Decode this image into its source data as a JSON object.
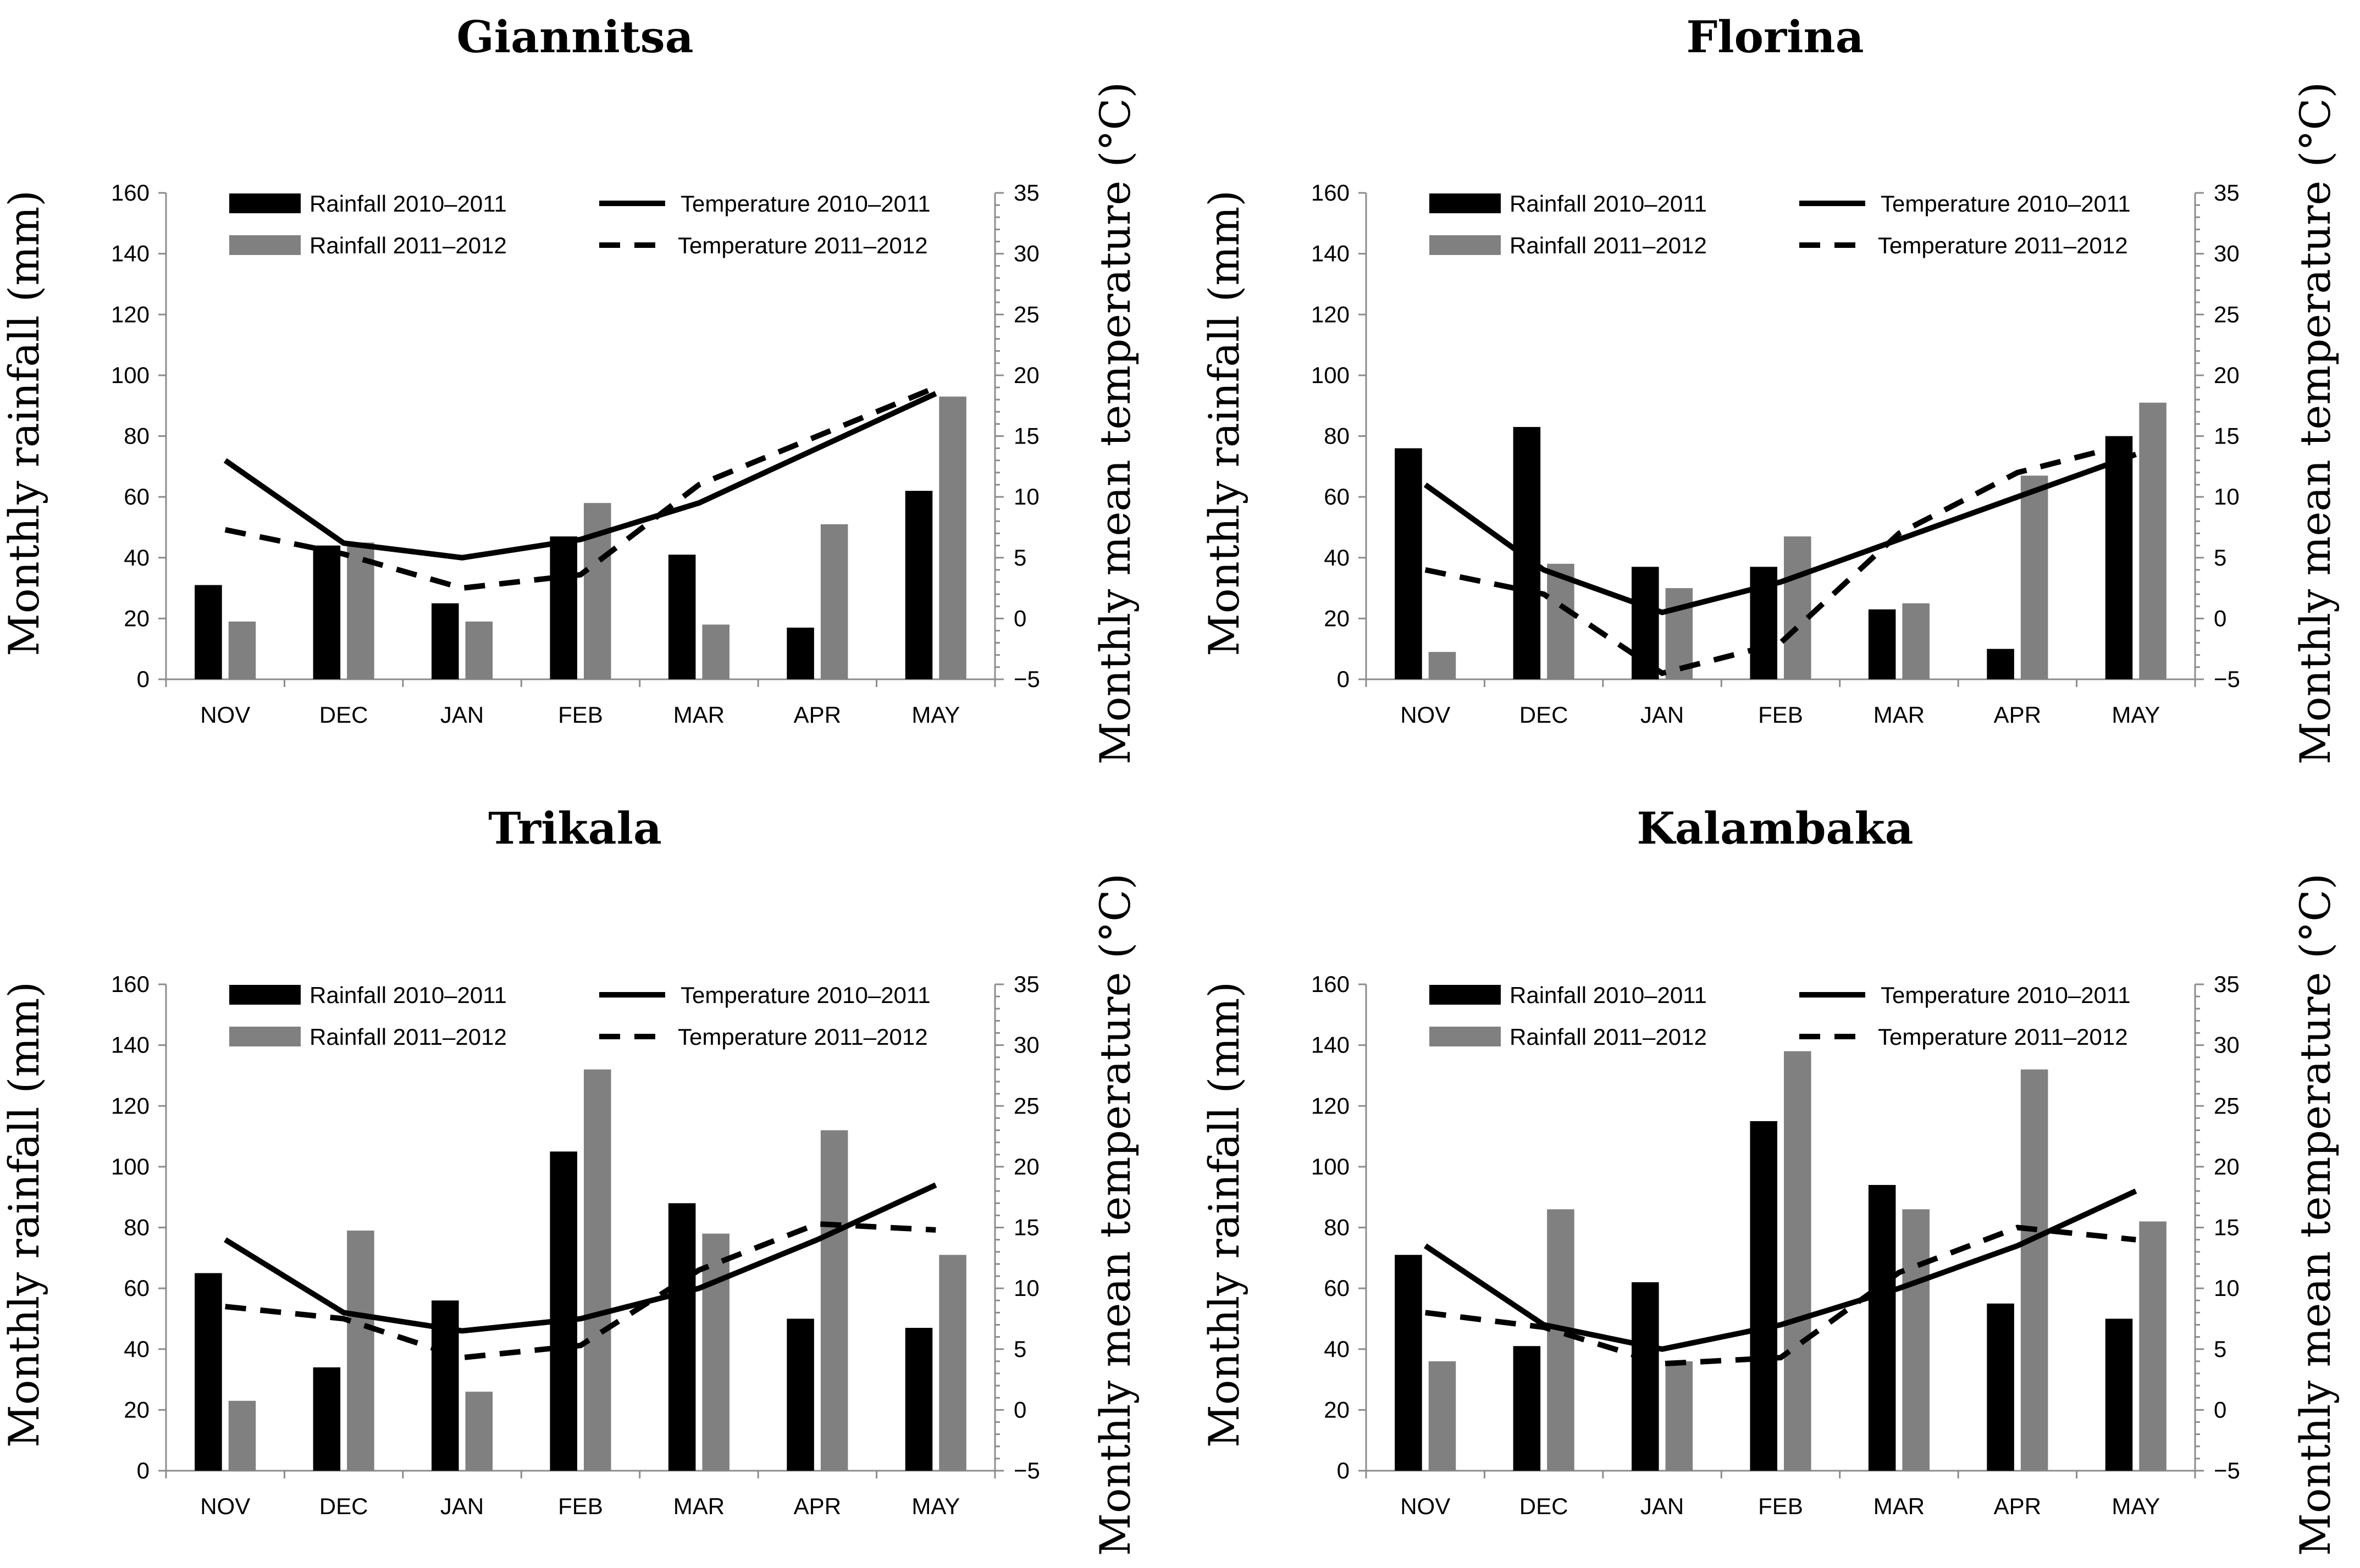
{
  "figure": {
    "color_2010": "#000000",
    "color_2011": "#808080",
    "legend": {
      "rain1": "Rainfall 2010–2011",
      "rain2": "Rainfall 2011–2012",
      "temp1": "Temperature 2010–2011",
      "temp2": "Temperature 2011–2012"
    }
  },
  "chart_data": [
    {
      "type": "bar+line",
      "title": "Giannitsa",
      "ylabel": "Monthly rainfall (mm)",
      "y2label": "Monthly mean temperature (°C)",
      "ylim": [
        0,
        160
      ],
      "y2lim": [
        -5,
        35
      ],
      "yticks": [
        0,
        20,
        40,
        60,
        80,
        100,
        120,
        140,
        160
      ],
      "y2ticks": [
        -5,
        0,
        5,
        10,
        15,
        20,
        25,
        30,
        35
      ],
      "categories": [
        "NOV",
        "DEC",
        "JAN",
        "FEB",
        "MAR",
        "APR",
        "MAY"
      ],
      "rainfall_2010_2011": [
        31,
        44,
        25,
        47,
        41,
        17,
        62
      ],
      "rainfall_2011_2012": [
        19,
        45,
        19,
        58,
        18,
        51,
        93
      ],
      "temperature_2010_2011": [
        13,
        6.2,
        5,
        6.5,
        9.5,
        14,
        18.5
      ],
      "temperature_2011_2012": [
        7.3,
        5.3,
        2.5,
        3.6,
        11,
        15,
        19
      ]
    },
    {
      "type": "bar+line",
      "title": "Florina",
      "ylabel": "Monthly rainfall (mm)",
      "y2label": "Monthly mean temperature (°C)",
      "ylim": [
        0,
        160
      ],
      "y2lim": [
        -5,
        35
      ],
      "yticks": [
        0,
        20,
        40,
        60,
        80,
        100,
        120,
        140,
        160
      ],
      "y2ticks": [
        -5,
        0,
        5,
        10,
        15,
        20,
        25,
        30,
        35
      ],
      "categories": [
        "NOV",
        "DEC",
        "JAN",
        "FEB",
        "MAR",
        "APR",
        "MAY"
      ],
      "rainfall_2010_2011": [
        76,
        83,
        37,
        37,
        23,
        10,
        80
      ],
      "rainfall_2011_2012": [
        9,
        38,
        30,
        47,
        25,
        67,
        91
      ],
      "temperature_2010_2011": [
        11,
        4,
        0.5,
        3,
        6.5,
        10,
        13.5
      ],
      "temperature_2011_2012": [
        4,
        2,
        -4.5,
        -2,
        7,
        12,
        14.5
      ]
    },
    {
      "type": "bar+line",
      "title": "Trikala",
      "ylabel": "Monthly rainfall (mm)",
      "y2label": "Monthly mean temperature (°C)",
      "ylim": [
        0,
        160
      ],
      "y2lim": [
        -5,
        35
      ],
      "yticks": [
        0,
        20,
        40,
        60,
        80,
        100,
        120,
        140,
        160
      ],
      "y2ticks": [
        -5,
        0,
        5,
        10,
        15,
        20,
        25,
        30,
        35
      ],
      "categories": [
        "NOV",
        "DEC",
        "JAN",
        "FEB",
        "MAR",
        "APR",
        "MAY"
      ],
      "rainfall_2010_2011": [
        65,
        34,
        56,
        105,
        88,
        50,
        47
      ],
      "rainfall_2011_2012": [
        23,
        79,
        26,
        132,
        78,
        112,
        71
      ],
      "temperature_2010_2011": [
        14,
        8,
        6.5,
        7.5,
        10,
        14,
        18.5
      ],
      "temperature_2011_2012": [
        8.5,
        7.5,
        4.3,
        5.3,
        11.5,
        15.3,
        14.8
      ]
    },
    {
      "type": "bar+line",
      "title": "Kalambaka",
      "ylabel": "Monthly rainfall (mm)",
      "y2label": "Monthly mean temperature (°C)",
      "ylim": [
        0,
        160
      ],
      "y2lim": [
        -5,
        35
      ],
      "yticks": [
        0,
        20,
        40,
        60,
        80,
        100,
        120,
        140,
        160
      ],
      "y2ticks": [
        -5,
        0,
        5,
        10,
        15,
        20,
        25,
        30,
        35
      ],
      "categories": [
        "NOV",
        "DEC",
        "JAN",
        "FEB",
        "MAR",
        "APR",
        "MAY"
      ],
      "rainfall_2010_2011": [
        71,
        41,
        62,
        115,
        94,
        55,
        50
      ],
      "rainfall_2011_2012": [
        36,
        86,
        36,
        138,
        86,
        132,
        82
      ],
      "temperature_2010_2011": [
        13.5,
        7,
        5,
        7,
        10,
        13.5,
        18
      ],
      "temperature_2011_2012": [
        8,
        6.8,
        3.8,
        4.3,
        11.3,
        15,
        14
      ]
    }
  ]
}
